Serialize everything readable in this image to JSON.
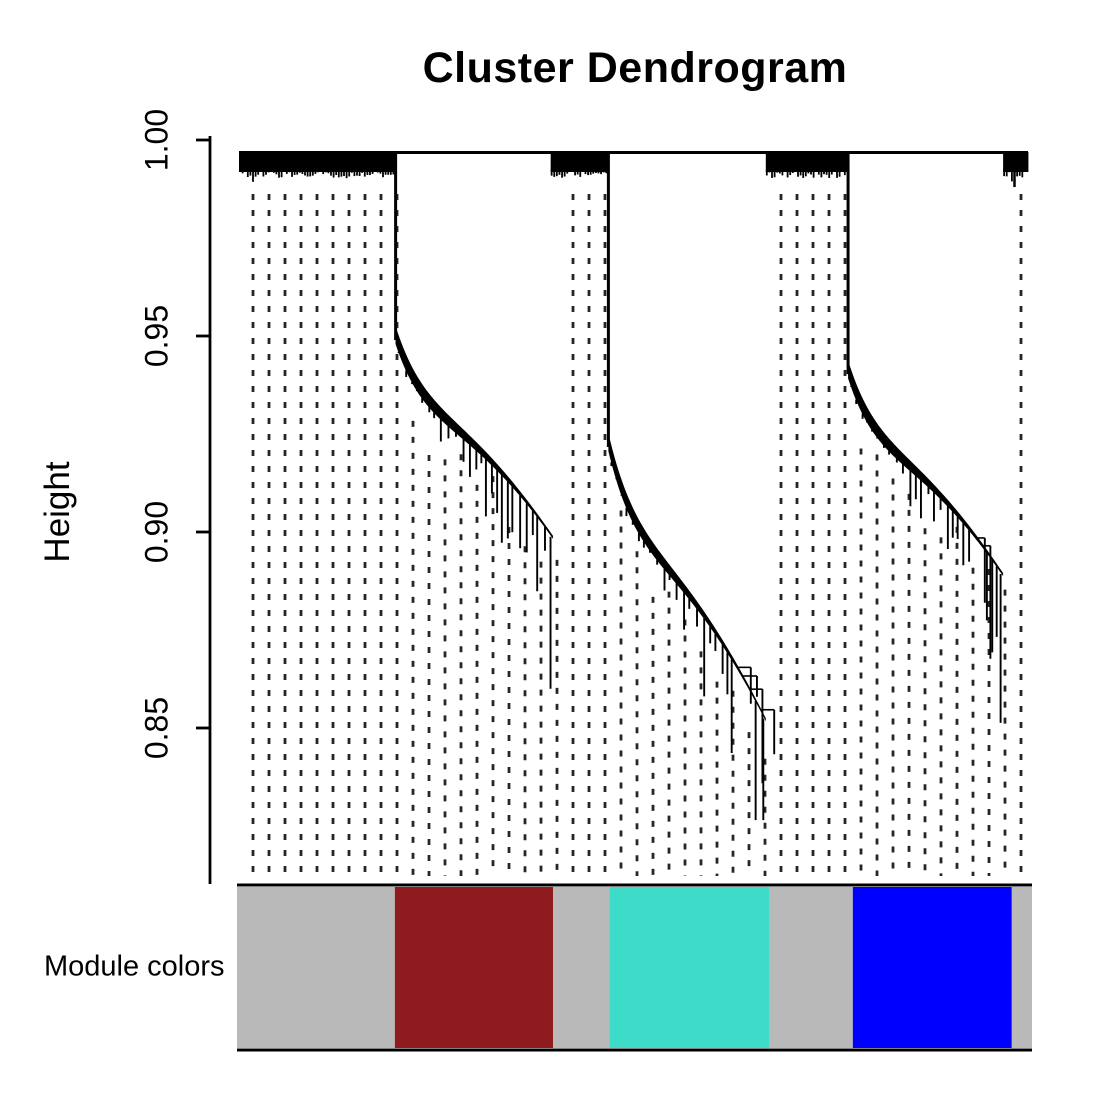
{
  "title": "Cluster Dendrogram",
  "ylabel": "Height",
  "colorbar_label": "Module colors",
  "chart_data": {
    "type": "dendrogram",
    "title": "Cluster Dendrogram",
    "ylabel": "Height",
    "annotation_label": "Module colors",
    "ylim": [
      0.82,
      1.0
    ],
    "yticks": [
      {
        "label": "1.00",
        "value": 1.0
      },
      {
        "label": "0.95",
        "value": 0.95
      },
      {
        "label": "0.90",
        "value": 0.9
      },
      {
        "label": "0.85",
        "value": 0.85
      }
    ],
    "root_height": 0.997,
    "leaf_band_bottom_height": 0.9915,
    "module_segments": [
      {
        "module": "grey",
        "hex": "#B9B9B9",
        "start_frac": 0.0,
        "end_frac": 0.197
      },
      {
        "module": "darkred",
        "hex": "#8E1B1E",
        "start_frac": 0.197,
        "end_frac": 0.397
      },
      {
        "module": "grey",
        "hex": "#B9B9B9",
        "start_frac": 0.397,
        "end_frac": 0.468
      },
      {
        "module": "turquoise",
        "hex": "#3CDCC8",
        "start_frac": 0.468,
        "end_frac": 0.671
      },
      {
        "module": "grey",
        "hex": "#B9B9B9",
        "start_frac": 0.671,
        "end_frac": 0.776
      },
      {
        "module": "blue",
        "hex": "#0000FF",
        "start_frac": 0.776,
        "end_frac": 0.977
      },
      {
        "module": "grey",
        "hex": "#B9B9B9",
        "start_frac": 0.977,
        "end_frac": 1.0
      }
    ],
    "leaf_bands": [
      {
        "start_frac": 0.0,
        "end_frac": 0.199
      },
      {
        "start_frac": 0.394,
        "end_frac": 0.467
      },
      {
        "start_frac": 0.666,
        "end_frac": 0.771
      },
      {
        "start_frac": 0.966,
        "end_frac": 0.998,
        "tail_tick_height": 0.988
      }
    ],
    "chains": [
      {
        "module": "darkred",
        "drop_frac": 0.198,
        "end_frac": 0.397,
        "drop_height": 0.9495,
        "spine_end_height": 0.8985,
        "min_height": 0.86
      },
      {
        "module": "turquoise",
        "drop_frac": 0.467,
        "end_frac": 0.666,
        "drop_height": 0.9222,
        "spine_end_height": 0.852,
        "min_height": 0.8265
      },
      {
        "module": "blue",
        "drop_frac": 0.77,
        "end_frac": 0.966,
        "drop_height": 0.9408,
        "spine_end_height": 0.889,
        "min_height": 0.8513
      }
    ],
    "dotted_guides": {
      "color": "#262626",
      "spacing_px": 16
    }
  }
}
